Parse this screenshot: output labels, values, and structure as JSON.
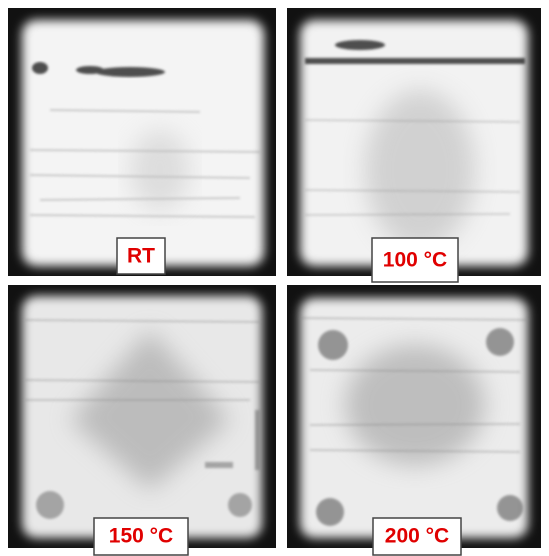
{
  "panels": [
    {
      "label": "RT"
    },
    {
      "label": "100 °C"
    },
    {
      "label": "150 °C"
    },
    {
      "label": "200 °C"
    }
  ]
}
